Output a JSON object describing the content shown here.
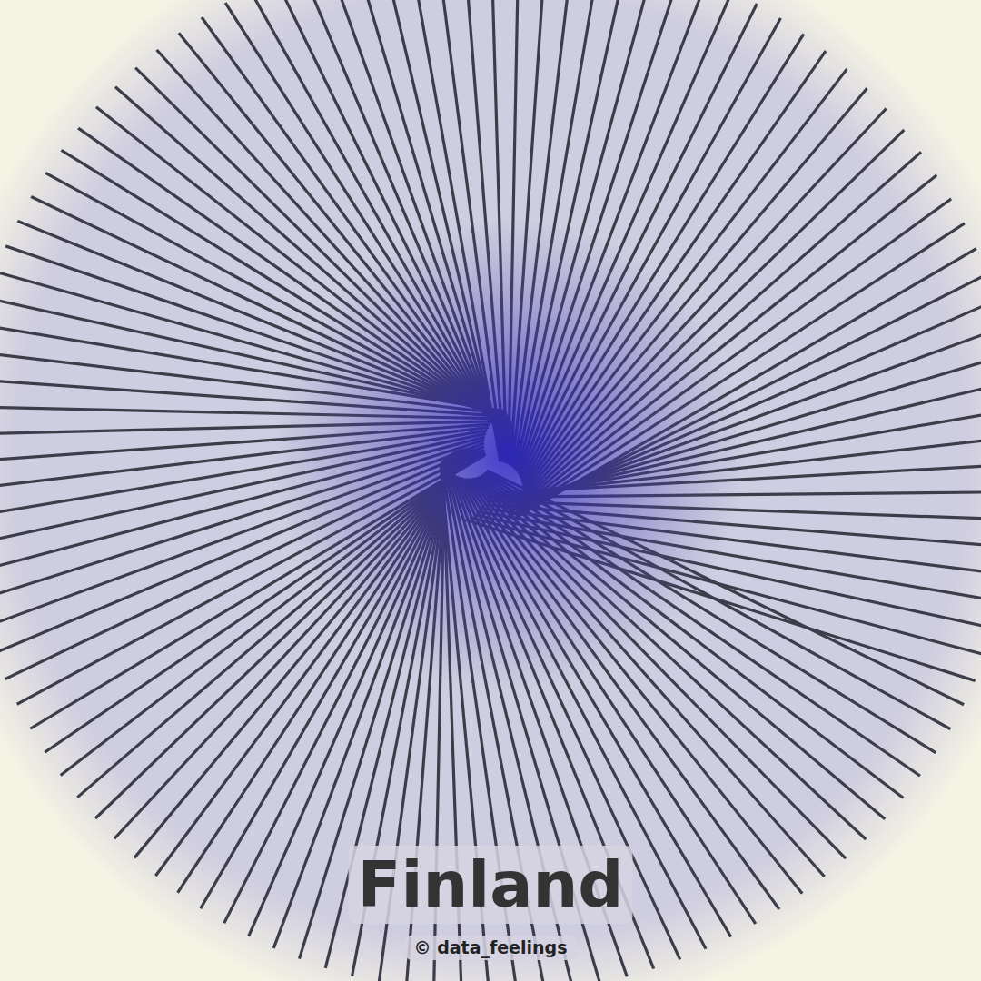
{
  "chart_data": {
    "type": "radial_lines",
    "title": "Finland",
    "subtitle": "© data_feelings",
    "color": "#3d3d4a",
    "tick_labels": false,
    "ylim": [
      0,
      100
    ],
    "values": [
      30,
      34,
      38,
      42,
      46,
      50,
      54,
      58,
      62,
      8,
      10,
      12,
      14,
      16,
      18,
      20,
      22,
      24,
      26,
      28,
      30,
      32,
      34,
      36,
      38,
      40,
      42,
      44,
      46,
      48,
      50,
      48,
      46,
      44,
      42,
      40,
      38,
      36,
      34,
      32,
      30,
      28,
      26,
      24,
      22,
      20,
      18,
      16,
      14,
      12,
      10,
      12,
      15,
      18,
      21,
      24,
      27,
      30,
      33,
      36,
      39,
      42,
      45,
      48,
      51,
      54,
      52,
      50,
      48,
      46,
      44,
      42,
      40,
      38,
      36,
      34,
      32,
      30,
      28,
      26,
      24,
      22,
      20,
      18,
      16,
      14,
      12,
      10,
      12,
      14,
      16,
      18,
      20,
      22,
      24,
      26,
      28,
      30,
      32,
      34,
      36,
      38,
      40,
      42,
      44,
      46,
      48,
      50,
      52,
      54,
      56,
      58,
      60,
      56,
      52,
      48,
      44,
      40,
      36,
      33
    ]
  }
}
